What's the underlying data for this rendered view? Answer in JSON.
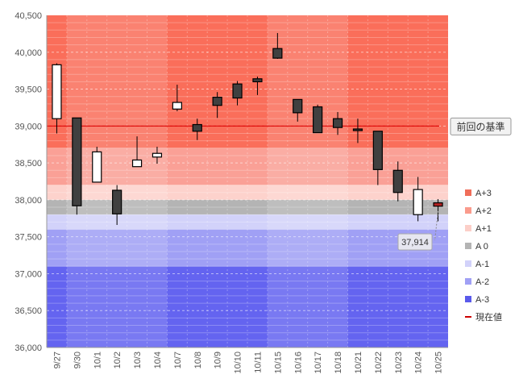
{
  "chart_data": {
    "type": "candlestick",
    "ylim": [
      36000,
      40500
    ],
    "yticks": [
      36000,
      36500,
      37000,
      37500,
      38000,
      38500,
      39000,
      39500,
      40000,
      40500
    ],
    "ytick_labels": [
      "36,000",
      "36,500",
      "37,000",
      "37,500",
      "38,000",
      "38,500",
      "39,000",
      "39,500",
      "40,000",
      "40,500"
    ],
    "categories": [
      "9/27",
      "9/30",
      "10/1",
      "10/2",
      "10/3",
      "10/4",
      "10/7",
      "10/8",
      "10/9",
      "10/10",
      "10/11",
      "10/15",
      "10/16",
      "10/17",
      "10/18",
      "10/21",
      "10/22",
      "10/23",
      "10/24",
      "10/25"
    ],
    "candles": [
      {
        "open": 39100,
        "high": 39850,
        "low": 38900,
        "close": 39830
      },
      {
        "open": 39110,
        "high": 39110,
        "low": 37800,
        "close": 37920
      },
      {
        "open": 38240,
        "high": 38720,
        "low": 38240,
        "close": 38650
      },
      {
        "open": 38130,
        "high": 38200,
        "low": 37660,
        "close": 37810
      },
      {
        "open": 38450,
        "high": 38860,
        "low": 38450,
        "close": 38540
      },
      {
        "open": 38580,
        "high": 38720,
        "low": 38490,
        "close": 38630
      },
      {
        "open": 39230,
        "high": 39560,
        "low": 39200,
        "close": 39320
      },
      {
        "open": 39020,
        "high": 39100,
        "low": 38810,
        "close": 38930
      },
      {
        "open": 39390,
        "high": 39460,
        "low": 39110,
        "close": 39280
      },
      {
        "open": 39570,
        "high": 39610,
        "low": 39280,
        "close": 39380
      },
      {
        "open": 39640,
        "high": 39670,
        "low": 39420,
        "close": 39600
      },
      {
        "open": 40050,
        "high": 40260,
        "low": 39910,
        "close": 39920
      },
      {
        "open": 39360,
        "high": 39360,
        "low": 39060,
        "close": 39180
      },
      {
        "open": 39260,
        "high": 39290,
        "low": 38910,
        "close": 38910
      },
      {
        "open": 39100,
        "high": 39190,
        "low": 38880,
        "close": 38980
      },
      {
        "open": 38960,
        "high": 39100,
        "low": 38770,
        "close": 38950
      },
      {
        "open": 38930,
        "high": 38930,
        "low": 38200,
        "close": 38410
      },
      {
        "open": 38400,
        "high": 38520,
        "low": 37980,
        "close": 38100
      },
      {
        "open": 37800,
        "high": 38310,
        "low": 37710,
        "close": 38140
      },
      {
        "open": 37960,
        "high": 38010,
        "low": 37710,
        "close": 37914
      }
    ],
    "zones": [
      {
        "name": "A+3",
        "from": 38700,
        "to": 40500,
        "color": "#fa6e5a"
      },
      {
        "name": "A+2",
        "from": 38200,
        "to": 38700,
        "color": "#faa096"
      },
      {
        "name": "A+1",
        "from": 38000,
        "to": 38200,
        "color": "#fdd2cc"
      },
      {
        "name": "A 0",
        "from": 37800,
        "to": 38000,
        "color": "#b4b4b4"
      },
      {
        "name": "A-1",
        "from": 37600,
        "to": 37800,
        "color": "#d2d2fa"
      },
      {
        "name": "A-2",
        "from": 37100,
        "to": 37600,
        "color": "#a0a0f5"
      },
      {
        "name": "A-3",
        "from": 36000,
        "to": 37100,
        "color": "#6464f0"
      }
    ],
    "reference_line": {
      "label": "前回の基準",
      "value": 39000,
      "color": "#dd0000"
    },
    "current_value": {
      "value": 37914,
      "label": "37,914"
    },
    "legend": [
      {
        "label": "A+3",
        "color": "#f06e5a",
        "kind": "box"
      },
      {
        "label": "A+2",
        "color": "#fa9b8c",
        "kind": "box"
      },
      {
        "label": "A+1",
        "color": "#fccfc8",
        "kind": "box"
      },
      {
        "label": "A 0",
        "color": "#b4b4b4",
        "kind": "box"
      },
      {
        "label": "A-1",
        "color": "#d2d2fa",
        "kind": "box"
      },
      {
        "label": "A-2",
        "color": "#a0a0f5",
        "kind": "box"
      },
      {
        "label": "A-3",
        "color": "#5a5aeb",
        "kind": "box"
      },
      {
        "label": "現在値",
        "color": "#cc0000",
        "kind": "line"
      }
    ],
    "legend_position": "right",
    "colors": {
      "up_body": "#ffffff",
      "down_body": "#404040",
      "outline": "#000000",
      "current_candle": "#b22222"
    }
  }
}
